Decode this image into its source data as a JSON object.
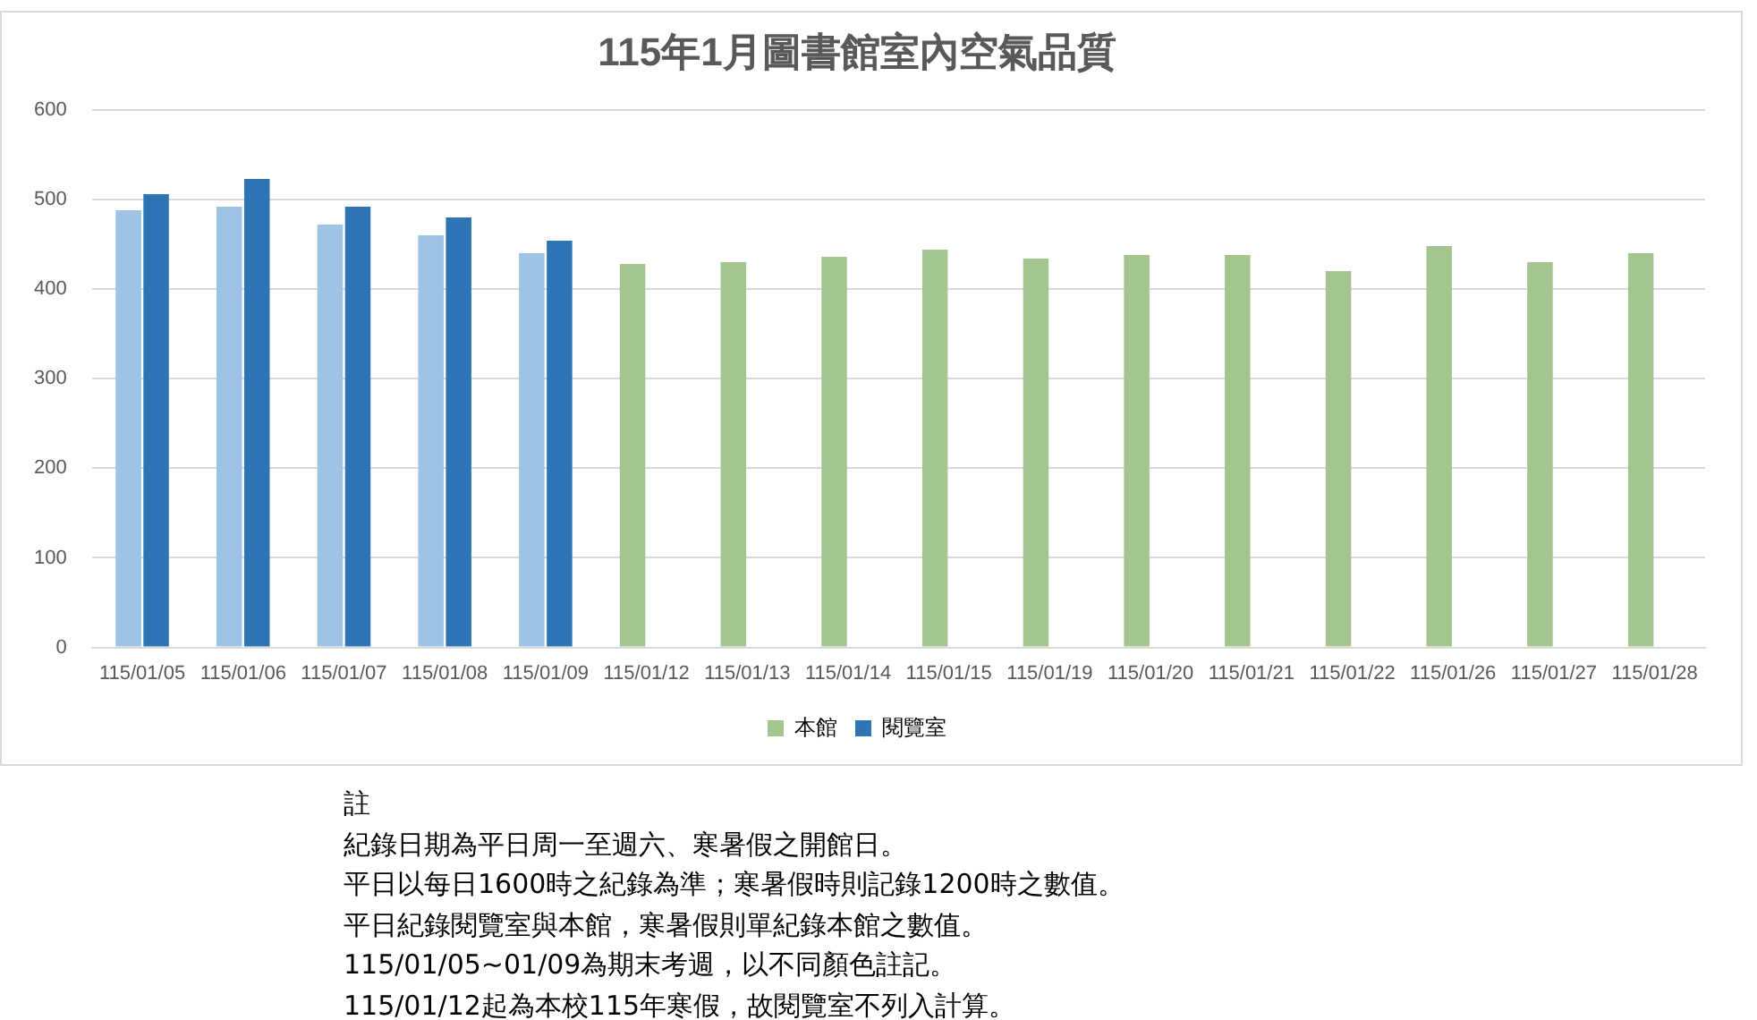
{
  "chart_data": {
    "type": "bar",
    "title": "115年1月圖書館室內空氣品質",
    "categories": [
      "115/01/05",
      "115/01/06",
      "115/01/07",
      "115/01/08",
      "115/01/09",
      "115/01/12",
      "115/01/13",
      "115/01/14",
      "115/01/15",
      "115/01/19",
      "115/01/20",
      "115/01/21",
      "115/01/22",
      "115/01/26",
      "115/01/27",
      "115/01/28"
    ],
    "series": [
      {
        "name": "本館",
        "color": "#a5c590",
        "colors": [
          "#9dc3e6",
          "#9dc3e6",
          "#9dc3e6",
          "#9dc3e6",
          "#9dc3e6",
          "#a5c590",
          "#a5c590",
          "#a5c590",
          "#a5c590",
          "#a5c590",
          "#a5c590",
          "#a5c590",
          "#a5c590",
          "#a5c590",
          "#a5c590",
          "#a5c590"
        ],
        "values": [
          488,
          492,
          472,
          460,
          440,
          428,
          430,
          436,
          444,
          434,
          438,
          438,
          420,
          448,
          430,
          440
        ]
      },
      {
        "name": "閱覽室",
        "color": "#2e75b6",
        "colors": [
          "#2e75b6",
          "#2e75b6",
          "#2e75b6",
          "#2e75b6",
          "#2e75b6",
          null,
          null,
          null,
          null,
          null,
          null,
          null,
          null,
          null,
          null,
          null
        ],
        "values": [
          506,
          523,
          492,
          480,
          454,
          null,
          null,
          null,
          null,
          null,
          null,
          null,
          null,
          null,
          null,
          null
        ]
      }
    ],
    "ylim": [
      0,
      600
    ],
    "yticks": [
      0,
      100,
      200,
      300,
      400,
      500,
      600
    ],
    "grid": "y",
    "legend": "bottom",
    "annotations": [
      "註",
      "紀錄日期為平日周一至週六、寒暑假之開館日。",
      "平日以每日1600時之紀錄為準；寒暑假時則記錄1200時之數值。",
      "平日紀錄閱覽室與本館，寒暑假則單紀錄本館之數值。",
      "115/01/05~01/09為期末考週，以不同顏色註記。",
      "115/01/12起為本校115年寒假，故閱覽室不列入計算。"
    ]
  }
}
